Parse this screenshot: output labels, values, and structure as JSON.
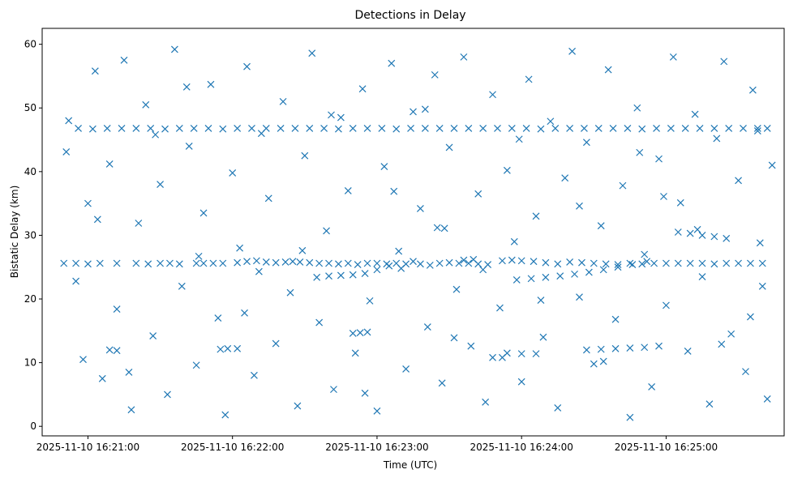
{
  "chart_data": {
    "type": "scatter",
    "title": "Detections in Delay",
    "xlabel": "Time (UTC)",
    "ylabel": "Bistatic Delay (km)",
    "x_axis_kind": "datetime",
    "xlim": [
      "2025-11-10 16:20:41",
      "2025-11-10 16:25:49"
    ],
    "ylim": [
      -1.5,
      62.5
    ],
    "x_ticks": [
      {
        "value": "2025-11-10 16:21:00",
        "label": "2025-11-10 16:21:00"
      },
      {
        "value": "2025-11-10 16:22:00",
        "label": "2025-11-10 16:22:00"
      },
      {
        "value": "2025-11-10 16:23:00",
        "label": "2025-11-10 16:23:00"
      },
      {
        "value": "2025-11-10 16:24:00",
        "label": "2025-11-10 16:24:00"
      },
      {
        "value": "2025-11-10 16:25:00",
        "label": "2025-11-10 16:25:00"
      }
    ],
    "y_ticks": [
      0,
      10,
      20,
      30,
      40,
      50,
      60
    ],
    "grid": false,
    "legend": null,
    "marker": "x",
    "color": "#1f77b4",
    "series": [
      {
        "points": [
          [
            "16:20:50",
            25.6
          ],
          [
            "16:20:55",
            25.6
          ],
          [
            "16:21:00",
            25.5
          ],
          [
            "16:21:05",
            25.6
          ],
          [
            "16:21:12",
            25.6
          ],
          [
            "16:21:20",
            25.6
          ],
          [
            "16:21:25",
            25.5
          ],
          [
            "16:21:30",
            25.6
          ],
          [
            "16:21:34",
            25.6
          ],
          [
            "16:21:38",
            25.5
          ],
          [
            "16:21:45",
            25.6
          ],
          [
            "16:21:48",
            25.6
          ],
          [
            "16:21:52",
            25.6
          ],
          [
            "16:21:56",
            25.6
          ],
          [
            "16:22:02",
            25.7
          ],
          [
            "16:22:06",
            25.9
          ],
          [
            "16:22:10",
            26.0
          ],
          [
            "16:22:14",
            25.8
          ],
          [
            "16:22:18",
            25.7
          ],
          [
            "16:22:22",
            25.8
          ],
          [
            "16:22:25",
            25.9
          ],
          [
            "16:22:28",
            25.8
          ],
          [
            "16:22:32",
            25.7
          ],
          [
            "16:22:36",
            25.6
          ],
          [
            "16:22:40",
            25.6
          ],
          [
            "16:22:44",
            25.5
          ],
          [
            "16:22:48",
            25.6
          ],
          [
            "16:22:52",
            25.4
          ],
          [
            "16:22:56",
            25.6
          ],
          [
            "16:23:00",
            25.6
          ],
          [
            "16:23:04",
            25.5
          ],
          [
            "16:23:08",
            25.6
          ],
          [
            "16:23:12",
            25.5
          ],
          [
            "16:23:15",
            25.9
          ],
          [
            "16:23:18",
            25.5
          ],
          [
            "16:23:22",
            25.3
          ],
          [
            "16:23:26",
            25.6
          ],
          [
            "16:23:30",
            25.7
          ],
          [
            "16:23:34",
            25.6
          ],
          [
            "16:23:38",
            25.6
          ],
          [
            "16:23:42",
            25.5
          ],
          [
            "16:23:46",
            25.4
          ],
          [
            "16:23:52",
            26.0
          ],
          [
            "16:23:56",
            26.1
          ],
          [
            "16:24:00",
            26.0
          ],
          [
            "16:24:05",
            25.9
          ],
          [
            "16:24:10",
            25.7
          ],
          [
            "16:24:15",
            25.5
          ],
          [
            "16:24:20",
            25.8
          ],
          [
            "16:24:25",
            25.7
          ],
          [
            "16:24:30",
            25.6
          ],
          [
            "16:24:35",
            25.5
          ],
          [
            "16:24:40",
            25.4
          ],
          [
            "16:24:45",
            25.6
          ],
          [
            "16:24:50",
            25.5
          ],
          [
            "16:24:55",
            25.6
          ],
          [
            "16:25:00",
            25.6
          ],
          [
            "16:25:05",
            25.6
          ],
          [
            "16:25:10",
            25.6
          ],
          [
            "16:25:15",
            25.6
          ],
          [
            "16:25:20",
            25.5
          ],
          [
            "16:25:25",
            25.6
          ],
          [
            "16:25:30",
            25.6
          ],
          [
            "16:25:35",
            25.6
          ],
          [
            "16:25:40",
            25.6
          ],
          [
            "16:20:56",
            46.8
          ],
          [
            "16:21:02",
            46.7
          ],
          [
            "16:21:08",
            46.8
          ],
          [
            "16:21:14",
            46.8
          ],
          [
            "16:21:20",
            46.8
          ],
          [
            "16:21:26",
            46.8
          ],
          [
            "16:21:32",
            46.7
          ],
          [
            "16:21:38",
            46.8
          ],
          [
            "16:21:44",
            46.8
          ],
          [
            "16:21:50",
            46.8
          ],
          [
            "16:21:56",
            46.7
          ],
          [
            "16:22:02",
            46.8
          ],
          [
            "16:22:08",
            46.8
          ],
          [
            "16:22:14",
            46.8
          ],
          [
            "16:22:20",
            46.8
          ],
          [
            "16:22:26",
            46.8
          ],
          [
            "16:22:32",
            46.8
          ],
          [
            "16:22:38",
            46.8
          ],
          [
            "16:22:44",
            46.7
          ],
          [
            "16:22:50",
            46.8
          ],
          [
            "16:22:56",
            46.8
          ],
          [
            "16:23:02",
            46.8
          ],
          [
            "16:23:08",
            46.7
          ],
          [
            "16:23:14",
            46.8
          ],
          [
            "16:23:20",
            46.8
          ],
          [
            "16:23:26",
            46.8
          ],
          [
            "16:23:32",
            46.8
          ],
          [
            "16:23:38",
            46.8
          ],
          [
            "16:23:44",
            46.8
          ],
          [
            "16:23:50",
            46.8
          ],
          [
            "16:23:56",
            46.8
          ],
          [
            "16:24:02",
            46.8
          ],
          [
            "16:24:08",
            46.7
          ],
          [
            "16:24:14",
            46.8
          ],
          [
            "16:24:20",
            46.8
          ],
          [
            "16:24:26",
            46.8
          ],
          [
            "16:24:32",
            46.8
          ],
          [
            "16:24:38",
            46.8
          ],
          [
            "16:24:44",
            46.8
          ],
          [
            "16:24:50",
            46.7
          ],
          [
            "16:24:56",
            46.8
          ],
          [
            "16:25:02",
            46.8
          ],
          [
            "16:25:08",
            46.8
          ],
          [
            "16:25:14",
            46.8
          ],
          [
            "16:25:20",
            46.8
          ],
          [
            "16:25:26",
            46.8
          ],
          [
            "16:25:32",
            46.8
          ],
          [
            "16:25:38",
            46.8
          ],
          [
            "16:25:42",
            46.8
          ],
          [
            "16:23:58",
            23.0
          ],
          [
            "16:24:04",
            23.2
          ],
          [
            "16:24:10",
            23.4
          ],
          [
            "16:24:16",
            23.6
          ],
          [
            "16:24:22",
            23.9
          ],
          [
            "16:24:28",
            24.2
          ],
          [
            "16:24:34",
            24.6
          ],
          [
            "16:24:40",
            25.0
          ],
          [
            "16:24:46",
            25.4
          ],
          [
            "16:24:52",
            25.9
          ],
          [
            "16:22:35",
            23.4
          ],
          [
            "16:22:40",
            23.6
          ],
          [
            "16:22:45",
            23.7
          ],
          [
            "16:22:50",
            23.8
          ],
          [
            "16:22:55",
            24.0
          ],
          [
            "16:23:00",
            24.6
          ],
          [
            "16:23:05",
            25.2
          ],
          [
            "16:23:10",
            24.8
          ],
          [
            "16:24:27",
            12.0
          ],
          [
            "16:24:33",
            12.1
          ],
          [
            "16:24:39",
            12.2
          ],
          [
            "16:24:45",
            12.3
          ],
          [
            "16:24:51",
            12.4
          ],
          [
            "16:24:57",
            12.6
          ],
          [
            "16:23:54",
            11.5
          ],
          [
            "16:24:00",
            11.4
          ],
          [
            "16:24:06",
            11.4
          ],
          [
            "16:23:48",
            10.8
          ],
          [
            "16:23:52",
            10.8
          ],
          [
            "16:21:55",
            12.1
          ],
          [
            "16:21:58",
            12.2
          ],
          [
            "16:22:02",
            12.2
          ],
          [
            "16:22:50",
            14.6
          ],
          [
            "16:22:53",
            14.7
          ],
          [
            "16:22:56",
            14.8
          ],
          [
            "16:23:36",
            26.1
          ],
          [
            "16:23:40",
            26.2
          ],
          [
            "16:25:05",
            30.5
          ],
          [
            "16:25:10",
            30.3
          ],
          [
            "16:25:15",
            30.0
          ],
          [
            "16:25:20",
            29.8
          ],
          [
            "16:25:25",
            29.5
          ],
          [
            "16:23:25",
            31.2
          ],
          [
            "16:23:28",
            31.1
          ],
          [
            "16:21:09",
            12.0
          ],
          [
            "16:21:12",
            11.9
          ],
          [
            "16:20:52",
            48.0
          ],
          [
            "16:20:55",
            22.8
          ],
          [
            "16:20:58",
            10.5
          ],
          [
            "16:21:00",
            35.0
          ],
          [
            "16:21:03",
            55.8
          ],
          [
            "16:21:06",
            7.5
          ],
          [
            "16:21:09",
            41.2
          ],
          [
            "16:21:12",
            18.4
          ],
          [
            "16:21:15",
            57.5
          ],
          [
            "16:21:18",
            2.6
          ],
          [
            "16:21:21",
            31.9
          ],
          [
            "16:21:24",
            50.5
          ],
          [
            "16:21:27",
            14.2
          ],
          [
            "16:21:30",
            38.0
          ],
          [
            "16:21:33",
            5.0
          ],
          [
            "16:21:36",
            59.2
          ],
          [
            "16:21:39",
            22.0
          ],
          [
            "16:21:42",
            44.0
          ],
          [
            "16:21:45",
            9.6
          ],
          [
            "16:21:48",
            33.5
          ],
          [
            "16:21:51",
            53.7
          ],
          [
            "16:21:54",
            17.0
          ],
          [
            "16:21:57",
            1.8
          ],
          [
            "16:22:00",
            39.8
          ],
          [
            "16:22:03",
            28.0
          ],
          [
            "16:22:06",
            56.5
          ],
          [
            "16:22:09",
            8.0
          ],
          [
            "16:22:12",
            46.0
          ],
          [
            "16:22:15",
            35.8
          ],
          [
            "16:22:18",
            13.0
          ],
          [
            "16:22:21",
            51.0
          ],
          [
            "16:22:24",
            21.0
          ],
          [
            "16:22:27",
            3.2
          ],
          [
            "16:22:30",
            42.5
          ],
          [
            "16:22:33",
            58.6
          ],
          [
            "16:22:36",
            16.3
          ],
          [
            "16:22:39",
            30.7
          ],
          [
            "16:22:42",
            5.8
          ],
          [
            "16:22:45",
            48.5
          ],
          [
            "16:22:48",
            37.0
          ],
          [
            "16:22:51",
            11.5
          ],
          [
            "16:22:54",
            53.0
          ],
          [
            "16:22:57",
            19.7
          ],
          [
            "16:23:00",
            2.4
          ],
          [
            "16:23:03",
            40.8
          ],
          [
            "16:23:06",
            57.0
          ],
          [
            "16:23:09",
            27.5
          ],
          [
            "16:23:12",
            9.0
          ],
          [
            "16:23:15",
            49.4
          ],
          [
            "16:23:18",
            34.2
          ],
          [
            "16:23:21",
            15.6
          ],
          [
            "16:23:24",
            55.2
          ],
          [
            "16:23:27",
            6.8
          ],
          [
            "16:23:30",
            43.8
          ],
          [
            "16:23:33",
            21.5
          ],
          [
            "16:23:36",
            58.0
          ],
          [
            "16:23:39",
            12.6
          ],
          [
            "16:23:42",
            36.5
          ],
          [
            "16:23:45",
            3.8
          ],
          [
            "16:23:48",
            52.1
          ],
          [
            "16:23:51",
            18.6
          ],
          [
            "16:23:54",
            40.2
          ],
          [
            "16:23:57",
            29.0
          ],
          [
            "16:24:00",
            7.0
          ],
          [
            "16:24:03",
            54.5
          ],
          [
            "16:24:06",
            33.0
          ],
          [
            "16:24:09",
            14.0
          ],
          [
            "16:24:12",
            47.9
          ],
          [
            "16:24:15",
            2.9
          ],
          [
            "16:24:18",
            39.0
          ],
          [
            "16:24:21",
            58.9
          ],
          [
            "16:24:24",
            20.3
          ],
          [
            "16:24:27",
            44.6
          ],
          [
            "16:24:30",
            9.8
          ],
          [
            "16:24:33",
            31.5
          ],
          [
            "16:24:36",
            56.0
          ],
          [
            "16:24:39",
            16.8
          ],
          [
            "16:24:42",
            37.8
          ],
          [
            "16:24:45",
            1.4
          ],
          [
            "16:24:48",
            50.0
          ],
          [
            "16:24:51",
            27.0
          ],
          [
            "16:24:54",
            6.2
          ],
          [
            "16:24:57",
            42.0
          ],
          [
            "16:25:00",
            19.0
          ],
          [
            "16:25:03",
            58.0
          ],
          [
            "16:25:06",
            35.1
          ],
          [
            "16:25:09",
            11.8
          ],
          [
            "16:25:12",
            49.0
          ],
          [
            "16:25:15",
            23.5
          ],
          [
            "16:25:18",
            3.5
          ],
          [
            "16:25:21",
            45.2
          ],
          [
            "16:25:24",
            57.3
          ],
          [
            "16:25:27",
            14.5
          ],
          [
            "16:25:30",
            38.6
          ],
          [
            "16:25:33",
            8.6
          ],
          [
            "16:25:36",
            52.8
          ],
          [
            "16:25:39",
            28.8
          ],
          [
            "16:25:42",
            4.3
          ],
          [
            "16:25:44",
            41.0
          ],
          [
            "16:25:40",
            22.0
          ],
          [
            "16:21:04",
            32.5
          ],
          [
            "16:21:28",
            45.8
          ],
          [
            "16:21:46",
            26.7
          ],
          [
            "16:22:11",
            24.3
          ],
          [
            "16:22:41",
            48.9
          ],
          [
            "16:23:07",
            36.9
          ],
          [
            "16:23:32",
            13.9
          ],
          [
            "16:23:59",
            45.1
          ],
          [
            "16:24:24",
            34.6
          ],
          [
            "16:24:49",
            43.0
          ],
          [
            "16:25:13",
            30.9
          ],
          [
            "16:25:35",
            17.2
          ],
          [
            "16:20:51",
            43.1
          ],
          [
            "16:21:17",
            8.5
          ],
          [
            "16:21:41",
            53.3
          ],
          [
            "16:22:05",
            17.8
          ],
          [
            "16:22:29",
            27.6
          ],
          [
            "16:22:55",
            5.2
          ],
          [
            "16:23:20",
            49.8
          ],
          [
            "16:23:44",
            24.6
          ],
          [
            "16:24:08",
            19.8
          ],
          [
            "16:24:34",
            10.2
          ],
          [
            "16:24:59",
            36.1
          ],
          [
            "16:25:23",
            12.9
          ],
          [
            "16:25:38",
            46.4
          ]
        ]
      }
    ]
  }
}
